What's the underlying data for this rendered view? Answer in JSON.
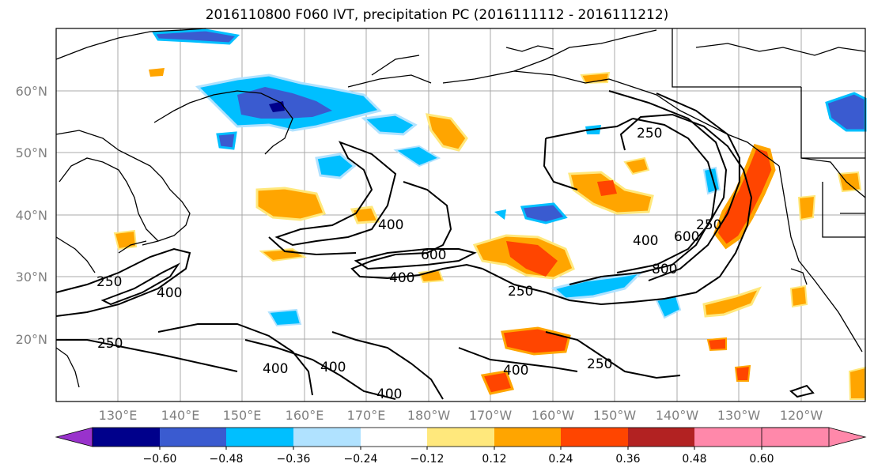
{
  "title": "2016110800 F060 IVT, precipitation PC (2016111112 - 2016111212)",
  "lat_ticks": [
    "60°N",
    "50°N",
    "40°N",
    "30°N",
    "20°N"
  ],
  "lon_ticks": [
    "130°E",
    "140°E",
    "150°E",
    "160°E",
    "170°E",
    "180°W",
    "170°W",
    "160°W",
    "150°W",
    "140°W",
    "130°W",
    "120°W"
  ],
  "colorbar": {
    "labels": [
      "−0.60",
      "−0.48",
      "−0.36",
      "−0.24",
      "−0.12",
      "0.12",
      "0.24",
      "0.36",
      "0.48",
      "0.60"
    ],
    "colors": [
      "#9932cc",
      "#00008b",
      "#3a5bd0",
      "#00bfff",
      "#b0e2ff",
      "#ffffff",
      "#ffe87c",
      "#ffa500",
      "#ff4500",
      "#b22222",
      "#ff88aa"
    ]
  },
  "contour_labels": [
    "250",
    "250",
    "400",
    "250",
    "400",
    "400",
    "600",
    "400",
    "250",
    "250",
    "400",
    "600",
    "800",
    "400",
    "400",
    "250",
    "400"
  ],
  "colors": {
    "pos_light": "#ffe87c",
    "pos_mid": "#ffa500",
    "pos_strong": "#ff4500",
    "pos_max": "#b22222",
    "neg_light": "#b0e2ff",
    "neg_mid": "#00bfff",
    "neg_strong": "#3a5bd0",
    "neg_max": "#00008b"
  }
}
